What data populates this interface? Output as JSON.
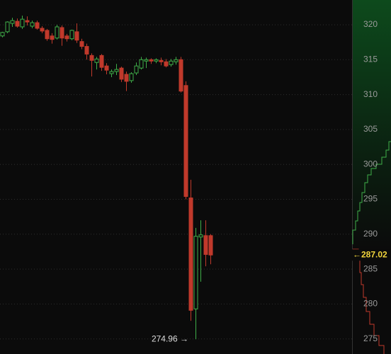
{
  "chart_data": {
    "type": "candlestick",
    "ylim": [
      272.84,
      323.55
    ],
    "yticks": [
      275,
      280,
      285,
      290,
      295,
      300,
      305,
      310,
      315,
      320
    ],
    "grid": true,
    "up_color": "#3fae49",
    "down_color": "#c0392b",
    "series": {
      "open": [
        318.4,
        319.0,
        320.2,
        320.5,
        319.7,
        320.6,
        319.8,
        320.3,
        319.5,
        319.2,
        318.4,
        318.1,
        319.6,
        318.4,
        318.0,
        319.0,
        317.6,
        316.9,
        315.6,
        314.6,
        315.6,
        314.1,
        313.0,
        313.3,
        313.8,
        312.9,
        312.0,
        313.1,
        313.8,
        314.8,
        315.0,
        314.8,
        314.9,
        314.7,
        314.3,
        314.7,
        315.0,
        311.3,
        295.2,
        279.3,
        289.6,
        289.8,
        289.8
      ],
      "high": [
        319.0,
        320.5,
        321.0,
        320.9,
        321.3,
        321.2,
        320.6,
        320.6,
        319.8,
        319.4,
        318.8,
        320.0,
        319.9,
        318.7,
        319.3,
        320.2,
        318.0,
        317.3,
        315.9,
        315.4,
        315.8,
        314.5,
        313.6,
        314.4,
        314.0,
        313.3,
        313.2,
        314.6,
        315.4,
        315.3,
        315.2,
        315.2,
        315.3,
        315.1,
        315.1,
        315.4,
        315.4,
        311.9,
        297.8,
        290.9,
        292.0,
        292.0,
        290.0
      ],
      "low": [
        318.2,
        318.8,
        319.7,
        319.6,
        319.4,
        319.9,
        319.5,
        319.3,
        318.8,
        317.7,
        317.3,
        317.9,
        317.0,
        317.6,
        317.8,
        317.4,
        316.5,
        315.0,
        312.6,
        313.6,
        313.4,
        312.9,
        312.5,
        312.8,
        311.8,
        310.5,
        311.7,
        312.8,
        313.6,
        313.8,
        314.4,
        314.5,
        314.2,
        313.9,
        314.0,
        314.3,
        310.3,
        295.0,
        277.6,
        274.96,
        283.2,
        285.4,
        285.7
      ],
      "close": [
        318.9,
        320.4,
        320.6,
        319.8,
        320.8,
        320.4,
        320.3,
        319.5,
        319.1,
        318.0,
        317.9,
        319.7,
        318.1,
        318.0,
        319.2,
        317.8,
        316.9,
        315.8,
        314.9,
        315.1,
        313.9,
        313.5,
        313.3,
        313.6,
        312.2,
        311.9,
        313.0,
        314.1,
        315.0,
        315.0,
        314.8,
        315.0,
        314.7,
        314.1,
        314.8,
        315.0,
        310.5,
        295.4,
        279.1,
        289.7,
        289.9,
        287.1,
        287.02
      ]
    },
    "low_marker": {
      "value": 274.96,
      "label": "274.96 →"
    },
    "last_price": {
      "value": 287.02,
      "label": "←287.02"
    }
  }
}
